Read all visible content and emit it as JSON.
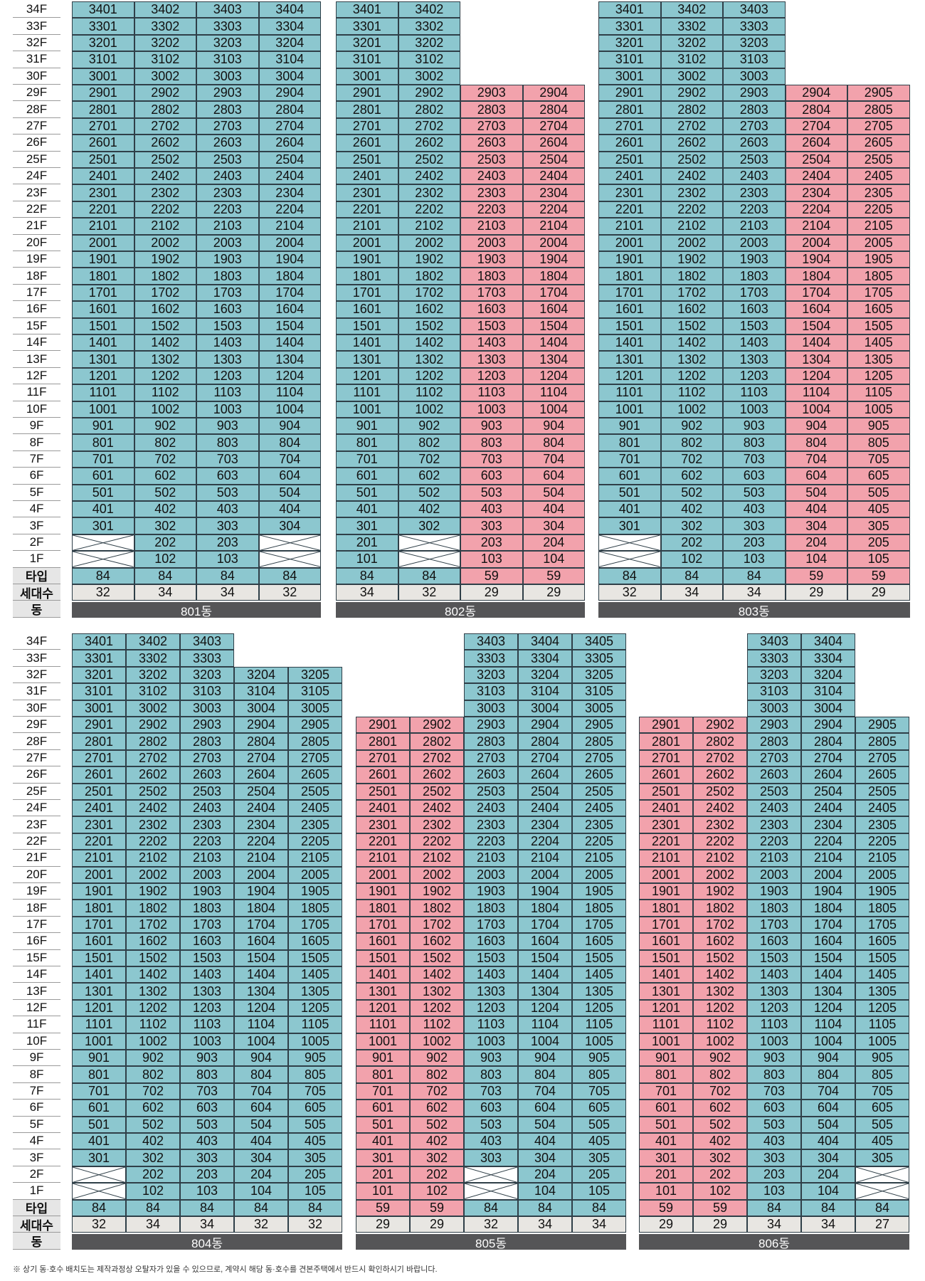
{
  "labels": {
    "type": "타입",
    "count": "세대수",
    "building": "동"
  },
  "legend_colors": {
    "84": "#8cc7cf",
    "59": "#f2a2ac"
  },
  "footnote": "※ 상기 동·호수 배치도는 제작과정상 오탈자가 있을 수 있으므로, 계약시 해당 동·호수를 견본주택에서 반드시 확인하시기 바랍니다.",
  "panels": [
    {
      "name": "801동",
      "columns": [
        {
          "line": 1,
          "type": "84",
          "count": "32",
          "top_floor": 34,
          "empty_floors": [
            1,
            2
          ]
        },
        {
          "line": 2,
          "type": "84",
          "count": "34",
          "top_floor": 34,
          "empty_floors": []
        },
        {
          "line": 3,
          "type": "84",
          "count": "34",
          "top_floor": 34,
          "empty_floors": []
        },
        {
          "line": 4,
          "type": "84",
          "count": "32",
          "top_floor": 34,
          "empty_floors": [
            1,
            2
          ]
        }
      ]
    },
    {
      "name": "802동",
      "columns": [
        {
          "line": 1,
          "type": "84",
          "count": "34",
          "top_floor": 34,
          "empty_floors": []
        },
        {
          "line": 2,
          "type": "84",
          "count": "32",
          "top_floor": 34,
          "empty_floors": [
            1,
            2
          ]
        },
        {
          "line": 3,
          "type": "59",
          "count": "29",
          "top_floor": 29,
          "empty_floors": []
        },
        {
          "line": 4,
          "type": "59",
          "count": "29",
          "top_floor": 29,
          "empty_floors": []
        }
      ]
    },
    {
      "name": "803동",
      "columns": [
        {
          "line": 1,
          "type": "84",
          "count": "32",
          "top_floor": 34,
          "empty_floors": [
            1,
            2
          ]
        },
        {
          "line": 2,
          "type": "84",
          "count": "34",
          "top_floor": 34,
          "empty_floors": []
        },
        {
          "line": 3,
          "type": "84",
          "count": "34",
          "top_floor": 34,
          "empty_floors": []
        },
        {
          "line": 4,
          "type": "59",
          "count": "29",
          "top_floor": 29,
          "empty_floors": []
        },
        {
          "line": 5,
          "type": "59",
          "count": "29",
          "top_floor": 29,
          "empty_floors": []
        }
      ]
    },
    {
      "name": "804동",
      "columns": [
        {
          "line": 1,
          "type": "84",
          "count": "32",
          "top_floor": 34,
          "empty_floors": [
            1,
            2
          ]
        },
        {
          "line": 2,
          "type": "84",
          "count": "34",
          "top_floor": 34,
          "empty_floors": []
        },
        {
          "line": 3,
          "type": "84",
          "count": "34",
          "top_floor": 34,
          "empty_floors": []
        },
        {
          "line": 4,
          "type": "84",
          "count": "32",
          "top_floor": 32,
          "empty_floors": []
        },
        {
          "line": 5,
          "type": "84",
          "count": "32",
          "top_floor": 32,
          "empty_floors": []
        }
      ]
    },
    {
      "name": "805동",
      "columns": [
        {
          "line": 1,
          "type": "59",
          "count": "29",
          "top_floor": 29,
          "empty_floors": []
        },
        {
          "line": 2,
          "type": "59",
          "count": "29",
          "top_floor": 29,
          "empty_floors": []
        },
        {
          "line": 3,
          "type": "84",
          "count": "32",
          "top_floor": 34,
          "empty_floors": [
            1,
            2
          ]
        },
        {
          "line": 4,
          "type": "84",
          "count": "34",
          "top_floor": 34,
          "empty_floors": []
        },
        {
          "line": 5,
          "type": "84",
          "count": "34",
          "top_floor": 34,
          "empty_floors": []
        }
      ]
    },
    {
      "name": "806동",
      "columns": [
        {
          "line": 1,
          "type": "59",
          "count": "29",
          "top_floor": 29,
          "empty_floors": []
        },
        {
          "line": 2,
          "type": "59",
          "count": "29",
          "top_floor": 29,
          "empty_floors": []
        },
        {
          "line": 3,
          "type": "84",
          "count": "34",
          "top_floor": 34,
          "empty_floors": []
        },
        {
          "line": 4,
          "type": "84",
          "count": "34",
          "top_floor": 34,
          "empty_floors": []
        },
        {
          "line": 5,
          "type": "84",
          "count": "27",
          "top_floor": 29,
          "empty_floors": [
            1,
            2
          ]
        }
      ]
    }
  ]
}
